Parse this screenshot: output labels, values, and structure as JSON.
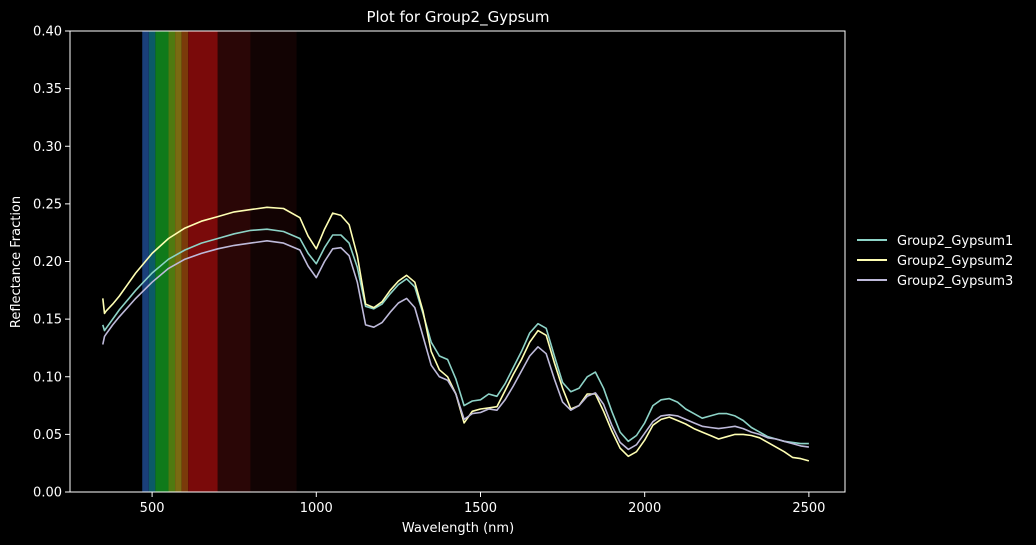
{
  "chart_data": {
    "type": "line",
    "title": "Plot for Group2_Gypsum",
    "xlabel": "Wavelength (nm)",
    "ylabel": "Reflectance Fraction",
    "xlim": [
      250,
      2610
    ],
    "ylim": [
      0,
      0.4
    ],
    "xticks": [
      500,
      1000,
      1500,
      2000,
      2500
    ],
    "yticks": [
      0.0,
      0.05,
      0.1,
      0.15,
      0.2,
      0.25,
      0.3,
      0.35,
      0.4
    ],
    "ytick_labels": [
      "0.00",
      "0.05",
      "0.10",
      "0.15",
      "0.20",
      "0.25",
      "0.30",
      "0.35",
      "0.40"
    ],
    "grid": false,
    "legend_position": "outside-right",
    "background": "#000000",
    "visible_spectrum_band": [
      {
        "from": 470,
        "to": 490,
        "color": "#1a3f7a"
      },
      {
        "from": 490,
        "to": 510,
        "color": "#0b5a66"
      },
      {
        "from": 510,
        "to": 550,
        "color": "#0f7a1a"
      },
      {
        "from": 550,
        "to": 570,
        "color": "#4f7a10"
      },
      {
        "from": 570,
        "to": 590,
        "color": "#7a6a12"
      },
      {
        "from": 590,
        "to": 610,
        "color": "#7a3a0a"
      },
      {
        "from": 610,
        "to": 700,
        "color": "#7a0a0a"
      },
      {
        "from": 700,
        "to": 800,
        "color": "#2a0606"
      },
      {
        "from": 800,
        "to": 940,
        "color": "#120303"
      }
    ],
    "series": [
      {
        "name": "Group2_Gypsum1",
        "color": "#8dd3c7",
        "x": [
          350,
          355,
          360,
          380,
          400,
          450,
          500,
          550,
          600,
          650,
          700,
          750,
          800,
          850,
          900,
          950,
          975,
          1000,
          1025,
          1050,
          1075,
          1100,
          1125,
          1150,
          1175,
          1200,
          1225,
          1250,
          1275,
          1300,
          1325,
          1350,
          1375,
          1400,
          1425,
          1450,
          1475,
          1500,
          1525,
          1550,
          1575,
          1600,
          1625,
          1650,
          1675,
          1700,
          1725,
          1750,
          1775,
          1800,
          1825,
          1850,
          1875,
          1900,
          1925,
          1950,
          1975,
          2000,
          2025,
          2050,
          2075,
          2100,
          2125,
          2150,
          2175,
          2200,
          2225,
          2250,
          2275,
          2300,
          2325,
          2350,
          2375,
          2400,
          2425,
          2450,
          2475,
          2500
        ],
        "y": [
          0.145,
          0.14,
          0.142,
          0.15,
          0.158,
          0.175,
          0.19,
          0.202,
          0.21,
          0.216,
          0.22,
          0.224,
          0.227,
          0.228,
          0.226,
          0.22,
          0.207,
          0.198,
          0.212,
          0.223,
          0.223,
          0.216,
          0.195,
          0.161,
          0.159,
          0.163,
          0.172,
          0.18,
          0.185,
          0.178,
          0.155,
          0.13,
          0.118,
          0.115,
          0.098,
          0.075,
          0.079,
          0.08,
          0.085,
          0.083,
          0.094,
          0.108,
          0.122,
          0.138,
          0.146,
          0.142,
          0.118,
          0.095,
          0.087,
          0.09,
          0.1,
          0.104,
          0.09,
          0.07,
          0.052,
          0.044,
          0.049,
          0.06,
          0.075,
          0.08,
          0.081,
          0.078,
          0.072,
          0.068,
          0.064,
          0.066,
          0.068,
          0.068,
          0.066,
          0.062,
          0.056,
          0.052,
          0.048,
          0.046,
          0.044,
          0.043,
          0.042,
          0.042
        ]
      },
      {
        "name": "Group2_Gypsum2",
        "color": "#ffffb3",
        "x": [
          350,
          355,
          360,
          380,
          400,
          450,
          500,
          550,
          600,
          650,
          700,
          750,
          800,
          850,
          900,
          950,
          975,
          1000,
          1025,
          1050,
          1075,
          1100,
          1125,
          1150,
          1175,
          1200,
          1225,
          1250,
          1275,
          1300,
          1325,
          1350,
          1375,
          1400,
          1425,
          1450,
          1475,
          1500,
          1525,
          1550,
          1575,
          1600,
          1625,
          1650,
          1675,
          1700,
          1725,
          1750,
          1775,
          1800,
          1825,
          1850,
          1875,
          1900,
          1925,
          1950,
          1975,
          2000,
          2025,
          2050,
          2075,
          2100,
          2125,
          2150,
          2175,
          2200,
          2225,
          2250,
          2275,
          2300,
          2325,
          2350,
          2375,
          2400,
          2425,
          2450,
          2475,
          2500
        ],
        "y": [
          0.168,
          0.155,
          0.157,
          0.163,
          0.17,
          0.19,
          0.207,
          0.22,
          0.229,
          0.235,
          0.239,
          0.243,
          0.245,
          0.247,
          0.246,
          0.238,
          0.222,
          0.211,
          0.228,
          0.242,
          0.24,
          0.232,
          0.205,
          0.163,
          0.16,
          0.165,
          0.175,
          0.183,
          0.188,
          0.182,
          0.157,
          0.122,
          0.106,
          0.1,
          0.085,
          0.06,
          0.07,
          0.072,
          0.073,
          0.074,
          0.088,
          0.102,
          0.115,
          0.13,
          0.14,
          0.136,
          0.112,
          0.09,
          0.072,
          0.075,
          0.085,
          0.085,
          0.07,
          0.053,
          0.038,
          0.031,
          0.035,
          0.045,
          0.058,
          0.063,
          0.065,
          0.062,
          0.059,
          0.055,
          0.052,
          0.049,
          0.046,
          0.048,
          0.05,
          0.05,
          0.049,
          0.047,
          0.043,
          0.039,
          0.035,
          0.03,
          0.029,
          0.027
        ]
      },
      {
        "name": "Group2_Gypsum3",
        "color": "#bebada",
        "x": [
          350,
          355,
          360,
          380,
          400,
          450,
          500,
          550,
          600,
          650,
          700,
          750,
          800,
          850,
          900,
          950,
          975,
          1000,
          1025,
          1050,
          1075,
          1100,
          1125,
          1150,
          1175,
          1200,
          1225,
          1250,
          1275,
          1300,
          1325,
          1350,
          1375,
          1400,
          1425,
          1450,
          1475,
          1500,
          1525,
          1550,
          1575,
          1600,
          1625,
          1650,
          1675,
          1700,
          1725,
          1750,
          1775,
          1800,
          1825,
          1850,
          1875,
          1900,
          1925,
          1950,
          1975,
          2000,
          2025,
          2050,
          2075,
          2100,
          2125,
          2150,
          2175,
          2200,
          2225,
          2250,
          2275,
          2300,
          2325,
          2350,
          2375,
          2400,
          2425,
          2450,
          2475,
          2500
        ],
        "y": [
          0.128,
          0.135,
          0.137,
          0.145,
          0.152,
          0.168,
          0.182,
          0.194,
          0.202,
          0.207,
          0.211,
          0.214,
          0.216,
          0.218,
          0.216,
          0.21,
          0.196,
          0.186,
          0.2,
          0.211,
          0.212,
          0.205,
          0.182,
          0.145,
          0.143,
          0.147,
          0.156,
          0.164,
          0.168,
          0.16,
          0.135,
          0.11,
          0.1,
          0.097,
          0.085,
          0.063,
          0.068,
          0.069,
          0.072,
          0.071,
          0.08,
          0.092,
          0.105,
          0.118,
          0.126,
          0.12,
          0.098,
          0.078,
          0.071,
          0.075,
          0.083,
          0.086,
          0.076,
          0.058,
          0.043,
          0.037,
          0.041,
          0.051,
          0.061,
          0.066,
          0.067,
          0.066,
          0.063,
          0.06,
          0.057,
          0.056,
          0.055,
          0.056,
          0.057,
          0.055,
          0.052,
          0.05,
          0.047,
          0.046,
          0.044,
          0.042,
          0.04,
          0.039
        ]
      }
    ]
  }
}
